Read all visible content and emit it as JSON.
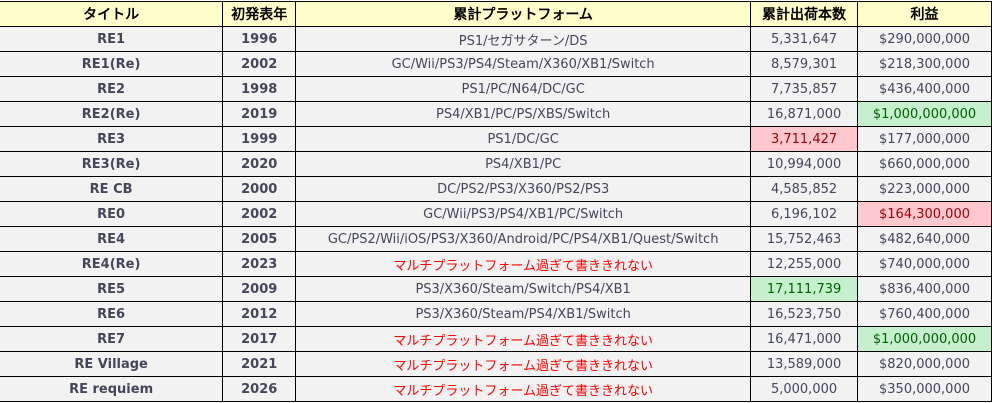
{
  "headers": [
    "タイトル",
    "初発表年",
    "累計プラットフォーム",
    "累計出荷本数",
    "利益"
  ],
  "colors": {
    "header_bg": "#ffffcc",
    "row_bg": "#f2f2f2",
    "bad_bg": "#ffc7ce",
    "bad_text": "#9c0006",
    "good_bg": "#c6efce",
    "good_text": "#006100",
    "note_text": "#ff0000"
  },
  "rows": [
    {
      "title": "RE1",
      "year": "1996",
      "platforms": "PS1/セガサターン/DS",
      "shipments": "5,331,647",
      "profit": "$290,000,000"
    },
    {
      "title": "RE1(Re)",
      "year": "2002",
      "platforms": "GC/Wii/PS3/PS4/Steam/X360/XB1/Switch",
      "shipments": "8,579,301",
      "profit": "$218,300,000"
    },
    {
      "title": "RE2",
      "year": "1998",
      "platforms": "PS1/PC/N64/DC/GC",
      "shipments": "7,735,857",
      "profit": "$436,400,000"
    },
    {
      "title": "RE2(Re)",
      "year": "2019",
      "platforms": "PS4/XB1/PC/PS/XBS/Switch",
      "shipments": "16,871,000",
      "profit": "$1,000,000,000",
      "profit_highlight": "good"
    },
    {
      "title": "RE3",
      "year": "1999",
      "platforms": "PS1/DC/GC",
      "shipments": "3,711,427",
      "profit": "$177,000,000",
      "shipments_highlight": "bad"
    },
    {
      "title": "RE3(Re)",
      "year": "2020",
      "platforms": "PS4/XB1/PC",
      "shipments": "10,994,000",
      "profit": "$660,000,000"
    },
    {
      "title": "RE CB",
      "year": "2000",
      "platforms": "DC/PS2/PS3/X360/PS2/PS3",
      "shipments": "4,585,852",
      "profit": "$223,000,000"
    },
    {
      "title": "RE0",
      "year": "2002",
      "platforms": "GC/Wii/PS3/PS4/XB1/PC/Switch",
      "shipments": "6,196,102",
      "profit": "$164,300,000",
      "profit_highlight": "bad"
    },
    {
      "title": "RE4",
      "year": "2005",
      "platforms": "GC/PS2/Wii/iOS/PS3/X360/Android/PC/PS4/XB1/Quest/Switch",
      "shipments": "15,752,463",
      "profit": "$482,640,000"
    },
    {
      "title": "RE4(Re)",
      "year": "2023",
      "platforms": "マルチプラットフォーム過ぎて書ききれない",
      "platforms_note": true,
      "shipments": "12,255,000",
      "profit": "$740,000,000"
    },
    {
      "title": "RE5",
      "year": "2009",
      "platforms": "PS3/X360/Steam/Switch/PS4/XB1",
      "shipments": "17,111,739",
      "profit": "$836,400,000",
      "shipments_highlight": "good"
    },
    {
      "title": "RE6",
      "year": "2012",
      "platforms": "PS3/X360/Steam/PS4/XB1/Switch",
      "shipments": "16,523,750",
      "profit": "$760,400,000"
    },
    {
      "title": "RE7",
      "year": "2017",
      "platforms": "マルチプラットフォーム過ぎて書ききれない",
      "platforms_note": true,
      "shipments": "16,471,000",
      "profit": "$1,000,000,000",
      "profit_highlight": "good"
    },
    {
      "title": "RE Village",
      "year": "2021",
      "platforms": "マルチプラットフォーム過ぎて書ききれない",
      "platforms_note": true,
      "shipments": "13,589,000",
      "profit": "$820,000,000"
    },
    {
      "title": "RE requiem",
      "year": "2026",
      "platforms": "マルチプラットフォーム過ぎて書ききれない",
      "platforms_note": true,
      "shipments": "5,000,000",
      "profit": "$350,000,000"
    }
  ]
}
